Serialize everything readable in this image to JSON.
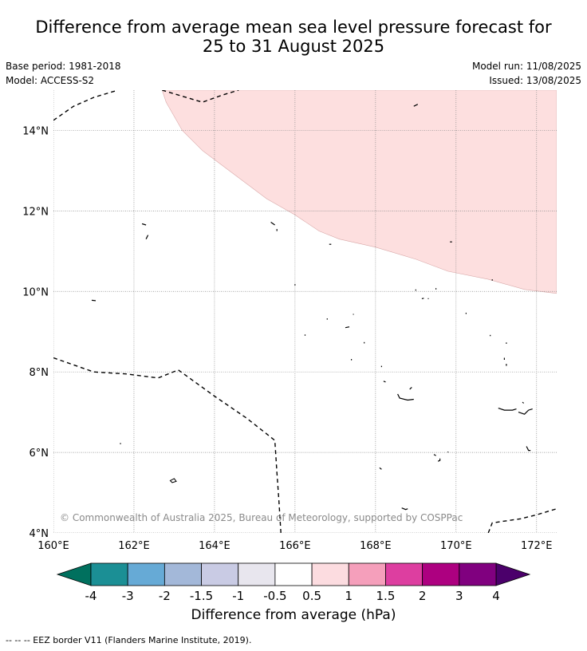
{
  "title_line1": "Difference from average mean sea level pressure forecast for",
  "title_line2": "25 to 31 August 2025",
  "base_period": "Base period: 1981-2018",
  "model": "Model: ACCESS-S2",
  "model_run": "Model run: 11/08/2025",
  "issued": "Issued: 13/08/2025",
  "copyright": "© Commonwealth of Australia 2025, Bureau of Meteorology, supported by COSPPac",
  "lon_labels": [
    "160°E",
    "162°E",
    "164°E",
    "166°E",
    "168°E",
    "170°E",
    "172°E"
  ],
  "lat_labels": [
    "14°N",
    "12°N",
    "10°N",
    "8°N",
    "6°N",
    "4°N"
  ],
  "map_extent": {
    "lon_min": 160,
    "lon_max": 172.5,
    "lat_min": 4,
    "lat_max": 15
  },
  "anomaly_region": {
    "value_band": "0.5 to 1",
    "color": "#fddfdf",
    "boundary": [
      [
        162.7,
        15.0
      ],
      [
        162.8,
        14.7
      ],
      [
        163.2,
        14.0
      ],
      [
        163.7,
        13.5
      ],
      [
        164.5,
        12.9
      ],
      [
        165.3,
        12.3
      ],
      [
        166.0,
        11.9
      ],
      [
        166.6,
        11.5
      ],
      [
        167.1,
        11.3
      ],
      [
        168.0,
        11.1
      ],
      [
        169.0,
        10.8
      ],
      [
        169.8,
        10.5
      ],
      [
        170.8,
        10.3
      ],
      [
        171.7,
        10.05
      ],
      [
        172.5,
        9.95
      ]
    ]
  },
  "eez_lines": [
    [
      [
        160.0,
        14.25
      ],
      [
        160.5,
        14.6
      ],
      [
        161.0,
        14.82
      ],
      [
        161.6,
        15.0
      ]
    ],
    [
      [
        162.7,
        15.0
      ],
      [
        163.2,
        14.85
      ],
      [
        163.7,
        14.7
      ],
      [
        164.2,
        14.88
      ],
      [
        164.6,
        15.0
      ]
    ],
    [
      [
        160.0,
        8.35
      ],
      [
        161.0,
        8.0
      ],
      [
        161.8,
        7.95
      ],
      [
        162.6,
        7.85
      ],
      [
        163.1,
        8.05
      ],
      [
        164.0,
        7.4
      ],
      [
        164.8,
        6.85
      ],
      [
        165.5,
        6.3
      ],
      [
        165.55,
        5.5
      ],
      [
        165.6,
        4.8
      ],
      [
        165.65,
        4.0
      ]
    ],
    [
      [
        170.8,
        4.0
      ],
      [
        170.9,
        4.25
      ],
      [
        171.6,
        4.35
      ],
      [
        172.0,
        4.45
      ],
      [
        172.5,
        4.6
      ]
    ]
  ],
  "islands": [
    [
      [
        162.2,
        11.68
      ],
      [
        162.3,
        11.65
      ]
    ],
    [
      [
        162.35,
        11.4
      ],
      [
        162.3,
        11.3
      ]
    ],
    [
      [
        165.4,
        11.72
      ],
      [
        165.5,
        11.65
      ]
    ],
    [
      [
        165.55,
        11.55
      ],
      [
        165.55,
        11.5
      ]
    ],
    [
      [
        166.85,
        11.17
      ],
      [
        166.9,
        11.17
      ]
    ],
    [
      [
        168.95,
        14.6
      ],
      [
        169.05,
        14.65
      ]
    ],
    [
      [
        169.85,
        11.23
      ],
      [
        169.9,
        11.23
      ]
    ],
    [
      [
        170.9,
        10.3
      ],
      [
        170.9,
        10.27
      ]
    ],
    [
      [
        160.95,
        9.78
      ],
      [
        161.05,
        9.77
      ]
    ],
    [
      [
        166.0,
        10.18
      ],
      [
        166.0,
        10.15
      ]
    ],
    [
      [
        169.0,
        10.05
      ],
      [
        169.0,
        10.02
      ]
    ],
    [
      [
        169.5,
        10.08
      ],
      [
        169.5,
        10.05
      ]
    ],
    [
      [
        169.15,
        9.82
      ],
      [
        169.2,
        9.83
      ]
    ],
    [
      [
        169.3,
        9.82
      ],
      [
        169.32,
        9.82
      ]
    ],
    [
      [
        170.25,
        9.47
      ],
      [
        170.25,
        9.44
      ]
    ],
    [
      [
        167.45,
        9.44
      ],
      [
        167.45,
        9.42
      ]
    ],
    [
      [
        166.8,
        9.33
      ],
      [
        166.8,
        9.3
      ]
    ],
    [
      [
        167.35,
        9.12
      ],
      [
        167.25,
        9.1
      ]
    ],
    [
      [
        166.25,
        8.93
      ],
      [
        166.25,
        8.9
      ]
    ],
    [
      [
        170.85,
        8.92
      ],
      [
        170.85,
        8.89
      ]
    ],
    [
      [
        171.25,
        8.73
      ],
      [
        171.25,
        8.7
      ]
    ],
    [
      [
        167.72,
        8.74
      ],
      [
        167.72,
        8.71
      ]
    ],
    [
      [
        167.4,
        8.32
      ],
      [
        167.4,
        8.29
      ]
    ],
    [
      [
        171.2,
        8.35
      ],
      [
        171.2,
        8.3
      ]
    ],
    [
      [
        171.25,
        8.2
      ],
      [
        171.25,
        8.15
      ]
    ],
    [
      [
        168.15,
        8.15
      ],
      [
        168.15,
        8.12
      ]
    ],
    [
      [
        168.2,
        7.77
      ],
      [
        168.25,
        7.75
      ]
    ],
    [
      [
        168.85,
        7.57
      ],
      [
        168.9,
        7.62
      ]
    ],
    [
      [
        168.55,
        7.45
      ],
      [
        168.6,
        7.35
      ],
      [
        168.8,
        7.3
      ],
      [
        168.95,
        7.32
      ]
    ],
    [
      [
        171.05,
        7.1
      ],
      [
        171.2,
        7.05
      ],
      [
        171.4,
        7.05
      ],
      [
        171.5,
        7.08
      ]
    ],
    [
      [
        171.55,
        7.0
      ],
      [
        171.7,
        6.95
      ],
      [
        171.8,
        7.05
      ],
      [
        171.9,
        7.08
      ]
    ],
    [
      [
        171.65,
        7.25
      ],
      [
        171.68,
        7.22
      ]
    ],
    [
      [
        171.75,
        6.15
      ],
      [
        171.8,
        6.05
      ],
      [
        171.85,
        6.05
      ]
    ],
    [
      [
        169.45,
        5.95
      ],
      [
        169.5,
        5.92
      ]
    ],
    [
      [
        169.6,
        5.85
      ],
      [
        169.6,
        5.8
      ],
      [
        169.55,
        5.78
      ]
    ],
    [
      [
        161.65,
        6.22
      ],
      [
        161.68,
        6.22
      ]
    ],
    [
      [
        168.1,
        5.62
      ],
      [
        168.15,
        5.58
      ]
    ],
    [
      [
        169.8,
        6.02
      ],
      [
        169.8,
        6.0
      ]
    ],
    [
      [
        168.65,
        4.62
      ],
      [
        168.75,
        4.58
      ],
      [
        168.8,
        4.6
      ]
    ]
  ],
  "island_polygons": [
    [
      [
        162.9,
        5.3
      ],
      [
        163.0,
        5.35
      ],
      [
        163.05,
        5.28
      ],
      [
        162.95,
        5.25
      ]
    ]
  ],
  "colorbar": {
    "label": "Difference from average (hPa)",
    "ticks": [
      "-4",
      "-3",
      "-2",
      "-1.5",
      "-1",
      "-0.5",
      "0.5",
      "1",
      "1.5",
      "2",
      "3",
      "4"
    ],
    "under_color": "#00705e",
    "over_color": "#4b006b",
    "colors": [
      "#1b8f95",
      "#66aad6",
      "#a3b8d9",
      "#c9cbe4",
      "#e8e6ee",
      "#ffffff",
      "#fcdce0",
      "#f59fbb",
      "#dd3ea0",
      "#ad0080",
      "#80007f"
    ]
  },
  "footer": "--  --  -- EEZ border V11 (Flanders Marine Institute, 2019)."
}
